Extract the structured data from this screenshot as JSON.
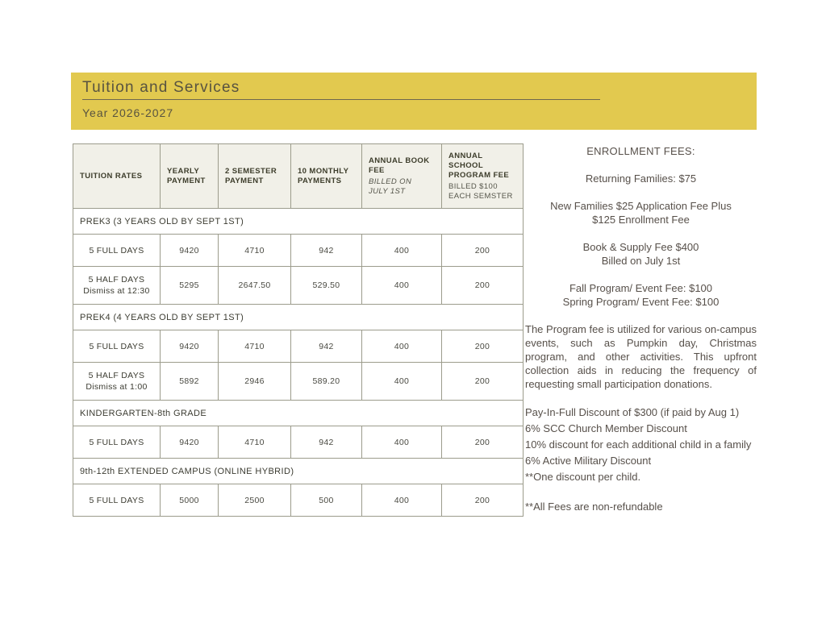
{
  "banner": {
    "title": "Tuition and Services",
    "subtitle": "Year 2026-2027"
  },
  "table": {
    "columns": [
      {
        "label": "TUITION RATES"
      },
      {
        "label": "YEARLY PAYMENT"
      },
      {
        "label": "2 SEMESTER PAYMENT"
      },
      {
        "label": "10 MONTHLY PAYMENTS"
      },
      {
        "label": "ANNUAL BOOK FEE",
        "sub": "BILLED ON JULY 1ST",
        "sub_italic": true
      },
      {
        "label": "ANNUAL SCHOOL PROGRAM FEE",
        "sub": "BILLED $100 EACH SEMSTER",
        "sub_italic": false
      }
    ],
    "rows": [
      {
        "type": "section",
        "label": "PREK3 (3 YEARS OLD BY SEPT 1ST)"
      },
      {
        "type": "data",
        "label": "5 FULL DAYS",
        "values": [
          "9420",
          "4710",
          "942",
          "400",
          "200"
        ]
      },
      {
        "type": "data",
        "label": "5 HALF DAYS",
        "sublabel": "Dismiss at 12:30",
        "values": [
          "5295",
          "2647.50",
          "529.50",
          "400",
          "200"
        ]
      },
      {
        "type": "section",
        "label": "PREK4 (4 YEARS OLD BY SEPT 1ST)"
      },
      {
        "type": "data",
        "label": "5 FULL DAYS",
        "values": [
          "9420",
          "4710",
          "942",
          "400",
          "200"
        ]
      },
      {
        "type": "data",
        "label": "5 HALF DAYS",
        "sublabel": "Dismiss at 1:00",
        "values": [
          "5892",
          "2946",
          "589.20",
          "400",
          "200"
        ]
      },
      {
        "type": "section",
        "label": "KINDERGARTEN-8th GRADE"
      },
      {
        "type": "data",
        "label": "5 FULL DAYS",
        "values": [
          "9420",
          "4710",
          "942",
          "400",
          "200"
        ]
      },
      {
        "type": "section",
        "label": "9th-12th EXTENDED CAMPUS (ONLINE HYBRID)"
      },
      {
        "type": "data",
        "label": "5 FULL DAYS",
        "values": [
          "5000",
          "2500",
          "500",
          "400",
          "200"
        ]
      }
    ]
  },
  "sidebar": {
    "blocks": [
      {
        "style": "center",
        "role": "heading",
        "lines": [
          "ENROLLMENT FEES:"
        ]
      },
      {
        "style": "center",
        "lines": [
          "Returning Families: $75"
        ]
      },
      {
        "style": "center",
        "lines": [
          "New Families $25 Application Fee Plus",
          "$125 Enrollment Fee"
        ]
      },
      {
        "style": "center",
        "lines": [
          "Book & Supply Fee $400",
          "Billed on July 1st"
        ]
      },
      {
        "style": "center",
        "lines": [
          "Fall Program/ Event Fee: $100",
          "Spring Program/ Event Fee: $100"
        ]
      },
      {
        "style": "justify",
        "lines": [
          "The Program fee is utilized for various on-campus events, such as Pumpkin day, Christmas program, and other activities. This upfront collection aids in reducing the frequency of requesting small participation donations."
        ]
      },
      {
        "style": "left",
        "lines": [
          "Pay-In-Full Discount of $300 (if paid by Aug 1)",
          "6% SCC Church Member Discount",
          "10% discount for each additional child in a family",
          "6% Active Military Discount",
          "**One discount per child."
        ]
      },
      {
        "style": "left",
        "lines": [
          "**All Fees are non-refundable"
        ]
      }
    ]
  },
  "colors": {
    "accent_yellow": "#e2c94f",
    "banner_text": "#585340",
    "table_border": "#9c9c8c",
    "table_header_bg": "#f1f0e8",
    "table_text": "#3d3d2b",
    "sidebar_text": "#57504a"
  }
}
